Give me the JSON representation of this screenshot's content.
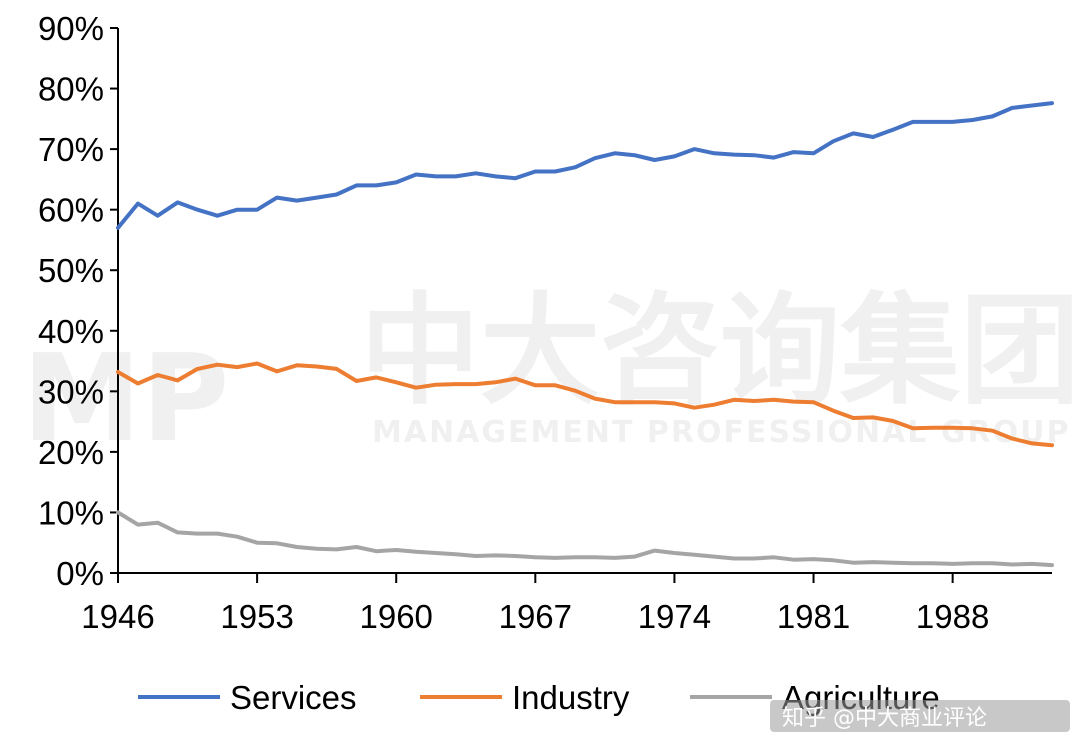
{
  "chart_data": {
    "type": "line",
    "title": "",
    "xlabel": "",
    "ylabel": "",
    "x": [
      1946,
      1947,
      1948,
      1949,
      1950,
      1951,
      1952,
      1953,
      1954,
      1955,
      1956,
      1957,
      1958,
      1959,
      1960,
      1961,
      1962,
      1963,
      1964,
      1965,
      1966,
      1967,
      1968,
      1969,
      1970,
      1971,
      1972,
      1973,
      1974,
      1975,
      1976,
      1977,
      1978,
      1979,
      1980,
      1981,
      1982,
      1983,
      1984,
      1985,
      1986,
      1987,
      1988,
      1989,
      1990,
      1991,
      1992,
      1993
    ],
    "xticks": [
      "1946",
      "1953",
      "1960",
      "1967",
      "1974",
      "1981",
      "1988"
    ],
    "xlim": [
      1946,
      1993
    ],
    "ylim": [
      0,
      90
    ],
    "yticks": [
      "0%",
      "10%",
      "20%",
      "30%",
      "40%",
      "50%",
      "60%",
      "70%",
      "80%",
      "90%"
    ],
    "grid": false,
    "legend_position": "bottom",
    "colors": {
      "Services": "#4472C4",
      "Industry": "#ED7D31",
      "Agriculture": "#A5A5A5"
    },
    "series": [
      {
        "name": "Services",
        "values": [
          57,
          61,
          59,
          61.2,
          60,
          59,
          60,
          60,
          62,
          61.5,
          62,
          62.5,
          64,
          64,
          64.5,
          65.8,
          65.5,
          65.5,
          66,
          65.5,
          65.2,
          66.3,
          66.3,
          67,
          68.5,
          69.3,
          69,
          68.2,
          68.8,
          70,
          69.3,
          69.1,
          69,
          68.6,
          69.5,
          69.3,
          71.3,
          72.6,
          72,
          73.2,
          74.5,
          74.5,
          74.5,
          74.8,
          75.4,
          76.8,
          77.2,
          77.6
        ]
      },
      {
        "name": "Industry",
        "values": [
          33.2,
          31.3,
          32.7,
          31.8,
          33.7,
          34.4,
          34,
          34.6,
          33.3,
          34.3,
          34.1,
          33.7,
          31.7,
          32.3,
          31.5,
          30.6,
          31.1,
          31.2,
          31.2,
          31.5,
          32.1,
          31,
          31,
          30.1,
          28.8,
          28.2,
          28.2,
          28.2,
          28,
          27.3,
          27.8,
          28.6,
          28.4,
          28.6,
          28.3,
          28.2,
          26.8,
          25.6,
          25.7,
          25.1,
          23.9,
          24,
          24,
          23.9,
          23.5,
          22.2,
          21.4,
          21.1
        ]
      },
      {
        "name": "Agriculture",
        "values": [
          10,
          8,
          8.3,
          6.7,
          6.5,
          6.5,
          6,
          5,
          4.9,
          4.3,
          4,
          3.9,
          4.3,
          3.6,
          3.8,
          3.5,
          3.3,
          3.1,
          2.8,
          2.9,
          2.8,
          2.6,
          2.5,
          2.6,
          2.6,
          2.5,
          2.7,
          3.7,
          3.3,
          3,
          2.7,
          2.4,
          2.4,
          2.6,
          2.2,
          2.3,
          2.1,
          1.7,
          1.8,
          1.7,
          1.6,
          1.6,
          1.5,
          1.6,
          1.6,
          1.4,
          1.5,
          1.3
        ]
      }
    ]
  },
  "watermark": {
    "logo": "MP",
    "cn_text": "中大咨询集团",
    "en_text": "MANAGEMENT PROFESSIONAL GROUP"
  },
  "source_tag": "知乎 @中大商业评论"
}
